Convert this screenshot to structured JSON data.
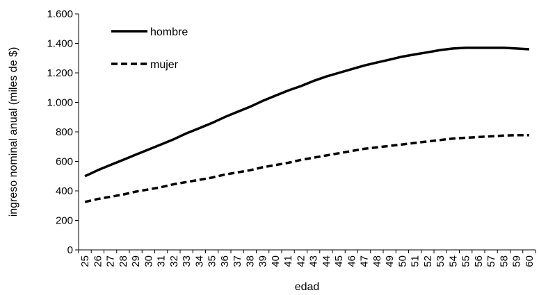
{
  "chart_data": {
    "type": "line",
    "title": "",
    "xlabel": "edad",
    "ylabel": "ingreso nominal anual (miles de $)",
    "ylim": [
      0,
      1600
    ],
    "yticks": [
      0,
      200,
      400,
      600,
      800,
      1000,
      1200,
      1400,
      1600
    ],
    "ytick_labels": [
      "0",
      "200",
      "400",
      "600",
      "800",
      "1.000",
      "1.200",
      "1.400",
      "1.600"
    ],
    "categories": [
      "25",
      "26",
      "27",
      "28",
      "29",
      "30",
      "31",
      "32",
      "33",
      "34",
      "35",
      "36",
      "37",
      "38",
      "39",
      "40",
      "41",
      "42",
      "43",
      "44",
      "45",
      "46",
      "47",
      "48",
      "49",
      "50",
      "51",
      "52",
      "53",
      "54",
      "55",
      "56",
      "57",
      "58",
      "59",
      "60"
    ],
    "grid": false,
    "legend_position": "top-left",
    "series": [
      {
        "name": "hombre",
        "style": "solid",
        "color": "#000000",
        "values": [
          500,
          540,
          575,
          610,
          645,
          680,
          715,
          750,
          790,
          825,
          860,
          900,
          935,
          970,
          1010,
          1045,
          1080,
          1110,
          1145,
          1175,
          1200,
          1225,
          1250,
          1270,
          1290,
          1310,
          1325,
          1340,
          1355,
          1365,
          1370,
          1370,
          1370,
          1370,
          1365,
          1360
        ]
      },
      {
        "name": "mujer",
        "style": "dashed",
        "color": "#000000",
        "values": [
          325,
          345,
          360,
          375,
          395,
          410,
          425,
          445,
          460,
          475,
          490,
          510,
          525,
          540,
          560,
          575,
          590,
          610,
          625,
          640,
          655,
          670,
          685,
          695,
          705,
          715,
          725,
          735,
          745,
          755,
          760,
          765,
          770,
          775,
          778,
          778
        ]
      }
    ]
  }
}
